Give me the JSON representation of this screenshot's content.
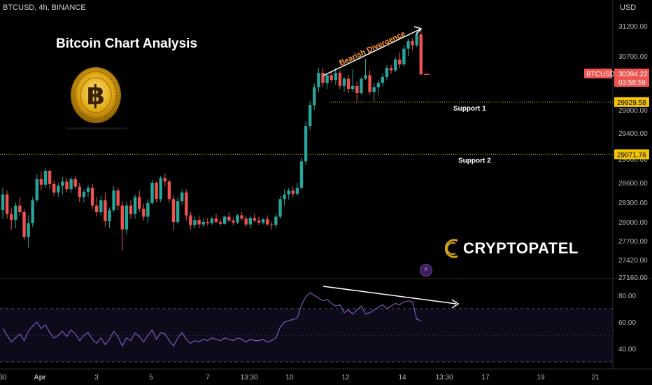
{
  "header": {
    "symbol_info": "BTCUSD, 4h, BINANCE",
    "title": "Bitcoin Chart Analysis",
    "axis_unit": "USD"
  },
  "branding": {
    "name": "CRYPTOPATEL",
    "accent": "#d4a017"
  },
  "colors": {
    "up": "#26a69a",
    "down": "#ef5350",
    "support": "#f2c500",
    "rsi": "#7e57c2",
    "annotation": "#ff9b3d",
    "rsi_band": "#0d0a1a"
  },
  "chart_data": [
    {
      "type": "candlestick",
      "title": "Bitcoin Chart Analysis",
      "y_ticks": [
        31200.0,
        30700.0,
        29800.0,
        29400.0,
        29000.0,
        28600.0,
        28300.0,
        28000.0,
        27700.0,
        27420.0,
        27160.0
      ],
      "x_ticks": [
        "30",
        "Apr",
        "3",
        "5",
        "7",
        "13:30",
        "10",
        "12",
        "14",
        "13:30",
        "17",
        "19",
        "21"
      ],
      "series_name": "BTCUSD",
      "last_price": "30394.22",
      "countdown": "03:58:59",
      "support_levels": [
        {
          "label": "Support 1",
          "price": "29929.58",
          "value": 29929.58
        },
        {
          "label": "Support 2",
          "price": "29071.76",
          "value": 29071.76
        }
      ],
      "annotation": "Bearish Divergence",
      "ohlc": [
        [
          28180,
          28520,
          28050,
          28420
        ],
        [
          28420,
          28480,
          28050,
          28120
        ],
        [
          28120,
          28220,
          27880,
          28030
        ],
        [
          28030,
          28300,
          27900,
          28250
        ],
        [
          28250,
          28380,
          28100,
          28150
        ],
        [
          28150,
          28200,
          27720,
          27760
        ],
        [
          27760,
          28100,
          27600,
          27980
        ],
        [
          27980,
          28380,
          27920,
          28330
        ],
        [
          28330,
          28740,
          28300,
          28660
        ],
        [
          28660,
          28780,
          28480,
          28570
        ],
        [
          28570,
          28840,
          28520,
          28800
        ],
        [
          28800,
          28820,
          28500,
          28580
        ],
        [
          28580,
          28640,
          28400,
          28450
        ],
        [
          28450,
          28600,
          28380,
          28550
        ],
        [
          28550,
          28700,
          28420,
          28620
        ],
        [
          28620,
          28680,
          28450,
          28500
        ],
        [
          28500,
          28700,
          28440,
          28660
        ],
        [
          28660,
          28720,
          28500,
          28540
        ],
        [
          28540,
          28600,
          28300,
          28380
        ],
        [
          28380,
          28500,
          28300,
          28460
        ],
        [
          28460,
          28560,
          28380,
          28520
        ],
        [
          28520,
          28580,
          28200,
          28250
        ],
        [
          28250,
          28380,
          28080,
          28150
        ],
        [
          28150,
          28400,
          28100,
          28330
        ],
        [
          28330,
          28450,
          27920,
          28010
        ],
        [
          28010,
          28220,
          27900,
          28180
        ],
        [
          28180,
          28550,
          28150,
          28480
        ],
        [
          28480,
          28520,
          28180,
          28250
        ],
        [
          28250,
          28320,
          27560,
          27880
        ],
        [
          27880,
          28300,
          27800,
          28250
        ],
        [
          28250,
          28330,
          28050,
          28120
        ],
        [
          28120,
          28420,
          28050,
          28380
        ],
        [
          28380,
          28480,
          28150,
          28200
        ],
        [
          28200,
          28280,
          28020,
          28080
        ],
        [
          28080,
          28350,
          27980,
          28290
        ],
        [
          28290,
          28650,
          28260,
          28600
        ],
        [
          28600,
          28620,
          28300,
          28350
        ],
        [
          28350,
          28720,
          28300,
          28680
        ],
        [
          28680,
          28760,
          28550,
          28620
        ],
        [
          28620,
          28650,
          28300,
          28350
        ],
        [
          28350,
          28400,
          27860,
          28000
        ],
        [
          28000,
          28380,
          27960,
          28320
        ],
        [
          28320,
          28500,
          28260,
          28450
        ],
        [
          28450,
          28500,
          28020,
          28100
        ],
        [
          28100,
          28150,
          27880,
          27950
        ],
        [
          27950,
          28080,
          27900,
          28030
        ],
        [
          28030,
          28100,
          27900,
          27960
        ],
        [
          27960,
          28050,
          27920,
          28000
        ],
        [
          28000,
          28060,
          27940,
          27980
        ],
        [
          27980,
          28080,
          27950,
          28050
        ],
        [
          28050,
          28120,
          27980,
          28000
        ],
        [
          28000,
          28050,
          27940,
          27970
        ],
        [
          27970,
          28100,
          27950,
          28080
        ],
        [
          28080,
          28150,
          28000,
          28020
        ],
        [
          28020,
          28060,
          27950,
          27990
        ],
        [
          27990,
          28120,
          27970,
          28100
        ],
        [
          28100,
          28150,
          28020,
          28050
        ],
        [
          28050,
          28090,
          27920,
          27960
        ],
        [
          27960,
          28100,
          27900,
          28060
        ],
        [
          28060,
          28130,
          28000,
          28020
        ],
        [
          28020,
          28080,
          27950,
          27990
        ],
        [
          27990,
          28060,
          27960,
          28040
        ],
        [
          28040,
          28100,
          27940,
          27960
        ],
        [
          27960,
          28000,
          27880,
          27950
        ],
        [
          27950,
          28120,
          27900,
          28080
        ],
        [
          28080,
          28400,
          28050,
          28350
        ],
        [
          28350,
          28500,
          28250,
          28420
        ],
        [
          28420,
          28520,
          28340,
          28480
        ],
        [
          28480,
          28540,
          28380,
          28430
        ],
        [
          28430,
          28600,
          28400,
          28520
        ],
        [
          28520,
          29020,
          28500,
          28960
        ],
        [
          28960,
          29600,
          28900,
          29520
        ],
        [
          29520,
          29950,
          29450,
          29880
        ],
        [
          29880,
          30240,
          29800,
          30180
        ],
        [
          30180,
          30500,
          30100,
          30420
        ],
        [
          30420,
          30500,
          30180,
          30250
        ],
        [
          30250,
          30400,
          30150,
          30380
        ],
        [
          30380,
          30450,
          30250,
          30300
        ],
        [
          30300,
          30500,
          30220,
          30420
        ],
        [
          30420,
          30460,
          30150,
          30200
        ],
        [
          30200,
          30350,
          30100,
          30320
        ],
        [
          30320,
          30380,
          30080,
          30150
        ],
        [
          30150,
          30480,
          30100,
          30200
        ],
        [
          30200,
          30280,
          29950,
          30080
        ],
        [
          30080,
          30350,
          30050,
          30320
        ],
        [
          30320,
          30650,
          30300,
          30380
        ],
        [
          30380,
          30460,
          30050,
          30100
        ],
        [
          30100,
          30250,
          29950,
          30180
        ],
        [
          30180,
          30300,
          30050,
          30250
        ],
        [
          30250,
          30400,
          30200,
          30350
        ],
        [
          30350,
          30550,
          30300,
          30500
        ],
        [
          30500,
          30550,
          30400,
          30460
        ],
        [
          30460,
          30680,
          30430,
          30640
        ],
        [
          30640,
          30760,
          30500,
          30560
        ],
        [
          30560,
          30880,
          30520,
          30820
        ],
        [
          30820,
          30980,
          30700,
          30950
        ],
        [
          30950,
          31000,
          30800,
          30880
        ],
        [
          30880,
          31100,
          30850,
          31060
        ],
        [
          31060,
          31150,
          30380,
          30394
        ]
      ]
    },
    {
      "type": "line",
      "series_name": "RSI",
      "y_ticks": [
        80.0,
        60.0,
        40.0
      ],
      "bands": [
        70,
        30
      ],
      "values": [
        55,
        50,
        45,
        48,
        51,
        46,
        53,
        57,
        60,
        55,
        58,
        52,
        48,
        50,
        53,
        49,
        54,
        51,
        46,
        50,
        52,
        47,
        44,
        48,
        43,
        47,
        53,
        49,
        42,
        48,
        46,
        52,
        49,
        45,
        50,
        54,
        47,
        52,
        51,
        46,
        42,
        48,
        52,
        47,
        44,
        46,
        45,
        47,
        46,
        48,
        47,
        46,
        48,
        47,
        46,
        48,
        47,
        45,
        47,
        46,
        46,
        47,
        45,
        46,
        48,
        56,
        60,
        61,
        62,
        63,
        73,
        79,
        82,
        80,
        78,
        76,
        77,
        74,
        72,
        73,
        67,
        69,
        66,
        69,
        72,
        66,
        67,
        69,
        71,
        73,
        70,
        72,
        74,
        73,
        75,
        76,
        75,
        62,
        61
      ]
    }
  ]
}
